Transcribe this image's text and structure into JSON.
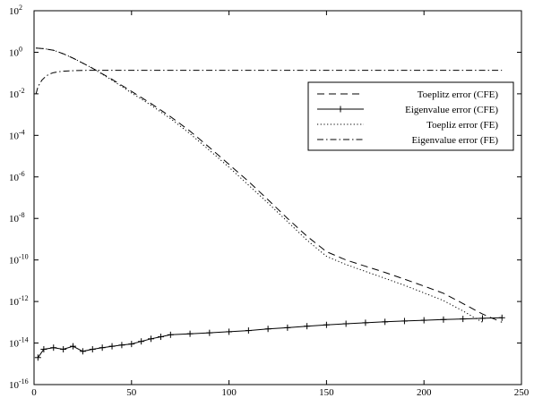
{
  "chart_data": {
    "type": "line",
    "title": "",
    "xlabel": "",
    "ylabel": "",
    "xlim": [
      0,
      250
    ],
    "ylim_log10": [
      -16,
      2
    ],
    "yscale": "log",
    "x_ticks": [
      0,
      50,
      100,
      150,
      200,
      250
    ],
    "y_tick_exponents": [
      2,
      0,
      -2,
      -4,
      -6,
      -8,
      -10,
      -12,
      -14,
      -16
    ],
    "y_tick_base": "10",
    "grid": false,
    "legend_position": "upper-right",
    "series": [
      {
        "name": "Toeplitz error (CFE)",
        "style": "dashed",
        "color": "#000000",
        "x": [
          1,
          5,
          10,
          15,
          20,
          25,
          30,
          40,
          50,
          60,
          70,
          80,
          90,
          100,
          110,
          120,
          130,
          140,
          150,
          160,
          170,
          180,
          190,
          200,
          210,
          220,
          230,
          240
        ],
        "y": [
          1.6,
          1.5,
          1.25,
          0.85,
          0.52,
          0.3,
          0.17,
          0.05,
          0.013,
          0.0034,
          0.0008,
          0.00016,
          2.6e-05,
          4e-06,
          6e-07,
          8e-08,
          1e-08,
          1.4e-09,
          2.5e-10,
          1e-10,
          5e-11,
          2.5e-11,
          1.2e-11,
          5.5e-12,
          2.5e-12,
          8e-13,
          2.5e-13,
          1e-13
        ]
      },
      {
        "name": "Eigenvalue error (CFE)",
        "style": "solid-plus",
        "color": "#000000",
        "x": [
          2,
          5,
          10,
          15,
          20,
          25,
          30,
          35,
          40,
          45,
          50,
          55,
          60,
          65,
          70,
          80,
          90,
          100,
          110,
          120,
          130,
          140,
          150,
          160,
          170,
          180,
          190,
          200,
          210,
          220,
          230,
          240
        ],
        "y": [
          2e-15,
          5e-15,
          6e-15,
          5e-15,
          7e-15,
          4e-15,
          5e-15,
          6e-15,
          7e-15,
          8e-15,
          9e-15,
          1.2e-14,
          1.6e-14,
          2e-14,
          2.5e-14,
          2.8e-14,
          3.1e-14,
          3.5e-14,
          4e-14,
          4.8e-14,
          5.5e-14,
          6.5e-14,
          7.5e-14,
          8.5e-14,
          9.5e-14,
          1.05e-13,
          1.15e-13,
          1.25e-13,
          1.35e-13,
          1.45e-13,
          1.55e-13,
          1.65e-13
        ]
      },
      {
        "name": "Toepliz error (FE)",
        "style": "dotted",
        "color": "#000000",
        "x": [
          1,
          5,
          10,
          15,
          20,
          25,
          30,
          40,
          50,
          60,
          70,
          80,
          90,
          100,
          110,
          120,
          130,
          140,
          150,
          160,
          170,
          180,
          190,
          200,
          210,
          220,
          230
        ],
        "y": [
          1.6,
          1.5,
          1.25,
          0.85,
          0.52,
          0.3,
          0.17,
          0.045,
          0.011,
          0.0028,
          0.00064,
          0.00012,
          1.9e-05,
          2.9e-06,
          4e-07,
          5.5e-08,
          7e-09,
          9e-10,
          1.5e-10,
          6e-11,
          2.8e-11,
          1.3e-11,
          6e-12,
          2.6e-12,
          1.1e-12,
          3.5e-13,
          1e-13
        ]
      },
      {
        "name": "Eigenvalue error (FE)",
        "style": "dashdot",
        "color": "#000000",
        "x": [
          1,
          2,
          4,
          6,
          8,
          10,
          14,
          18,
          22,
          26,
          30,
          40,
          60,
          100,
          150,
          200,
          240
        ],
        "y": [
          0.01,
          0.022,
          0.045,
          0.07,
          0.09,
          0.105,
          0.12,
          0.128,
          0.132,
          0.134,
          0.135,
          0.136,
          0.136,
          0.136,
          0.136,
          0.136,
          0.136
        ]
      }
    ]
  }
}
